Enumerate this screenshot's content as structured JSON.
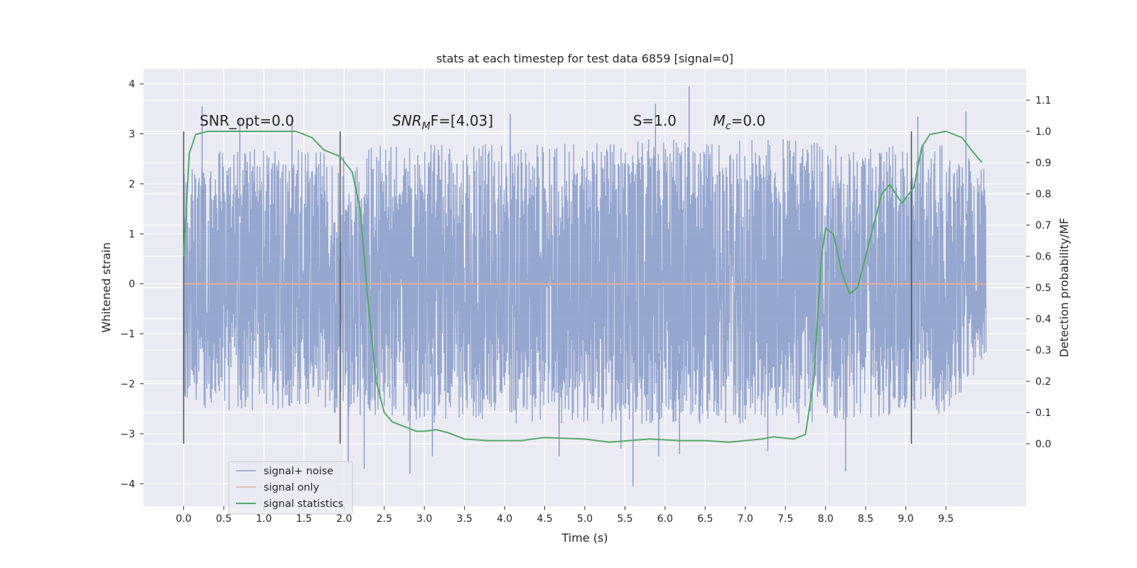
{
  "chart_data": {
    "type": "line",
    "title": "stats at each timestep for test data 6859 [signal=0]",
    "xlabel": "Time (s)",
    "ylabel": "Whitened strain",
    "y2label": "Detection probability/MF",
    "xlim": [
      -0.5,
      10.5
    ],
    "ylim": [
      -4.45,
      4.3
    ],
    "y2lim": [
      -0.2,
      1.2
    ],
    "xticks": [
      0.0,
      0.5,
      1.0,
      1.5,
      2.0,
      2.5,
      3.0,
      3.5,
      4.0,
      4.5,
      5.0,
      5.5,
      6.0,
      6.5,
      7.0,
      7.5,
      8.0,
      8.5,
      9.0,
      9.5
    ],
    "xtick_labels": [
      "0.0",
      "0.5",
      "1.0",
      "1.5",
      "2.0",
      "2.5",
      "3.0",
      "3.5",
      "4.0",
      "4.5",
      "5.0",
      "5.5",
      "6.0",
      "6.5",
      "7.0",
      "7.5",
      "8.0",
      "8.5",
      "9.0",
      "9.5"
    ],
    "yticks": [
      -4,
      -3,
      -2,
      -1,
      0,
      1,
      2,
      3,
      4
    ],
    "ytick_labels": [
      "−4",
      "−3",
      "−2",
      "−1",
      "0",
      "1",
      "2",
      "3",
      "4"
    ],
    "y2ticks": [
      0.0,
      0.1,
      0.2,
      0.3,
      0.4,
      0.5,
      0.6,
      0.7,
      0.8,
      0.9,
      1.0,
      1.1
    ],
    "y2tick_labels": [
      "0.0",
      "0.1",
      "0.2",
      "0.3",
      "0.4",
      "0.5",
      "0.6",
      "0.7",
      "0.8",
      "0.9",
      "1.0",
      "1.1"
    ],
    "grid": true,
    "legend_position": "lower-left",
    "annotations": [
      {
        "text": "SNR_opt=0.0",
        "x": 0.2,
        "y": 3.05
      },
      {
        "text": "SNR_MF=[4.03]",
        "x": 2.6,
        "y": 3.05
      },
      {
        "text": "S=1.0",
        "x": 5.6,
        "y": 3.05
      },
      {
        "text": "M_c=0.0",
        "x": 6.6,
        "y": 3.05
      }
    ],
    "vertical_lines": [
      {
        "x": 0.0,
        "y_from": -3.2,
        "y_to": 3.05
      },
      {
        "x": 1.95,
        "y_from": -3.2,
        "y_to": 3.05
      },
      {
        "x": 9.07,
        "y_from": -3.2,
        "y_to": 3.05
      }
    ],
    "series": [
      {
        "name": "signal+ noise",
        "color": "#8da0cb",
        "axis": "left",
        "x_range": [
          0.0,
          10.0
        ],
        "envelope_hi": [
          [
            0.0,
            2.2
          ],
          [
            0.5,
            2.7
          ],
          [
            1.0,
            2.7
          ],
          [
            1.5,
            2.7
          ],
          [
            2.0,
            2.6
          ],
          [
            2.5,
            2.8
          ],
          [
            3.0,
            2.8
          ],
          [
            3.5,
            2.8
          ],
          [
            4.0,
            2.9
          ],
          [
            4.5,
            2.8
          ],
          [
            5.0,
            2.9
          ],
          [
            5.5,
            2.9
          ],
          [
            6.0,
            2.9
          ],
          [
            6.5,
            2.9
          ],
          [
            7.0,
            2.9
          ],
          [
            7.5,
            2.9
          ],
          [
            8.0,
            2.8
          ],
          [
            8.5,
            2.7
          ],
          [
            9.0,
            2.8
          ],
          [
            9.5,
            2.8
          ],
          [
            10.0,
            2.3
          ]
        ],
        "envelope_lo": [
          [
            0.0,
            -2.4
          ],
          [
            0.5,
            -2.6
          ],
          [
            1.0,
            -2.5
          ],
          [
            1.5,
            -2.5
          ],
          [
            2.0,
            -2.7
          ],
          [
            2.5,
            -2.7
          ],
          [
            3.0,
            -2.8
          ],
          [
            3.5,
            -2.8
          ],
          [
            4.0,
            -2.8
          ],
          [
            4.5,
            -2.8
          ],
          [
            5.0,
            -2.8
          ],
          [
            5.5,
            -2.8
          ],
          [
            6.0,
            -2.8
          ],
          [
            6.5,
            -2.8
          ],
          [
            7.0,
            -2.8
          ],
          [
            7.5,
            -2.8
          ],
          [
            8.0,
            -2.8
          ],
          [
            8.5,
            -2.7
          ],
          [
            9.0,
            -2.6
          ],
          [
            9.5,
            -2.6
          ],
          [
            10.0,
            -1.5
          ]
        ],
        "peaks": [
          [
            0.23,
            3.55
          ],
          [
            0.7,
            3.3
          ],
          [
            1.35,
            3.3
          ],
          [
            2.05,
            -3.6
          ],
          [
            2.25,
            -3.7
          ],
          [
            2.82,
            -3.8
          ],
          [
            3.1,
            -3.45
          ],
          [
            4.07,
            3.4
          ],
          [
            4.68,
            -3.45
          ],
          [
            5.45,
            -3.3
          ],
          [
            5.6,
            -4.05
          ],
          [
            5.88,
            3.6
          ],
          [
            5.92,
            -3.45
          ],
          [
            6.3,
            3.95
          ],
          [
            6.18,
            -3.4
          ],
          [
            7.28,
            -3.35
          ],
          [
            8.25,
            -3.75
          ],
          [
            9.15,
            3.35
          ],
          [
            9.75,
            3.45
          ]
        ]
      },
      {
        "name": "signal only",
        "color": "#e5ae97",
        "axis": "left",
        "points": [
          [
            0.0,
            0.0
          ],
          [
            10.0,
            0.0
          ]
        ]
      },
      {
        "name": "signal statistics",
        "color": "#55a868",
        "axis": "right",
        "points": [
          [
            0.0,
            0.6
          ],
          [
            0.07,
            0.93
          ],
          [
            0.15,
            0.99
          ],
          [
            0.3,
            1.0
          ],
          [
            1.0,
            1.0
          ],
          [
            1.4,
            1.0
          ],
          [
            1.6,
            0.98
          ],
          [
            1.75,
            0.94
          ],
          [
            1.95,
            0.92
          ],
          [
            2.1,
            0.87
          ],
          [
            2.2,
            0.75
          ],
          [
            2.3,
            0.45
          ],
          [
            2.4,
            0.2
          ],
          [
            2.5,
            0.1
          ],
          [
            2.6,
            0.07
          ],
          [
            2.75,
            0.055
          ],
          [
            2.9,
            0.04
          ],
          [
            3.0,
            0.04
          ],
          [
            3.15,
            0.045
          ],
          [
            3.3,
            0.035
          ],
          [
            3.5,
            0.015
          ],
          [
            3.8,
            0.01
          ],
          [
            4.2,
            0.01
          ],
          [
            4.5,
            0.02
          ],
          [
            5.0,
            0.015
          ],
          [
            5.3,
            0.005
          ],
          [
            5.8,
            0.015
          ],
          [
            6.2,
            0.01
          ],
          [
            6.5,
            0.01
          ],
          [
            6.8,
            0.005
          ],
          [
            7.2,
            0.015
          ],
          [
            7.35,
            0.022
          ],
          [
            7.6,
            0.015
          ],
          [
            7.75,
            0.03
          ],
          [
            7.85,
            0.2
          ],
          [
            7.95,
            0.6
          ],
          [
            8.0,
            0.69
          ],
          [
            8.1,
            0.67
          ],
          [
            8.2,
            0.55
          ],
          [
            8.3,
            0.48
          ],
          [
            8.4,
            0.5
          ],
          [
            8.55,
            0.65
          ],
          [
            8.7,
            0.8
          ],
          [
            8.8,
            0.83
          ],
          [
            8.95,
            0.77
          ],
          [
            9.1,
            0.82
          ],
          [
            9.2,
            0.95
          ],
          [
            9.3,
            0.99
          ],
          [
            9.5,
            1.0
          ],
          [
            9.7,
            0.98
          ],
          [
            9.85,
            0.93
          ],
          [
            9.95,
            0.9
          ]
        ]
      }
    ]
  }
}
